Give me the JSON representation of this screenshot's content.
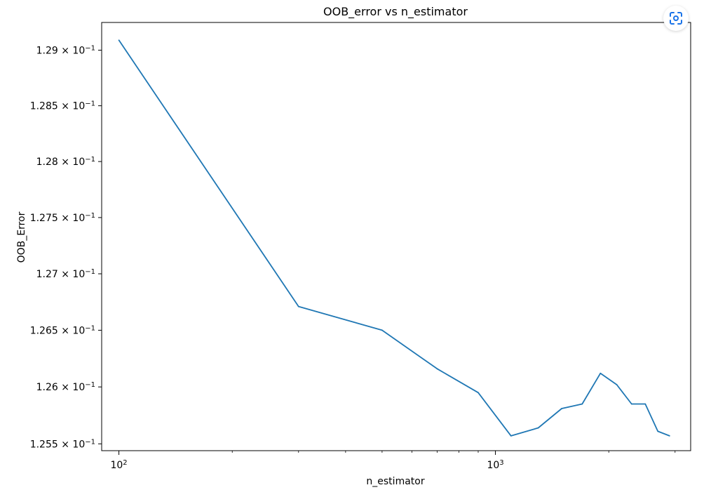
{
  "chart_data": {
    "type": "line",
    "title": "OOB_error vs n_estimator",
    "xlabel": "n_estimator",
    "ylabel": "OOB_Error",
    "xscale": "log",
    "yscale": "log",
    "xlim": [
      90,
      3300
    ],
    "ylim": [
      0.12544,
      0.12925
    ],
    "grid": false,
    "line_color": "#1f77b4",
    "x_ticks": [
      {
        "value": 100,
        "base": "10",
        "exp": "2"
      },
      {
        "value": 1000,
        "base": "10",
        "exp": "3"
      }
    ],
    "y_ticks": [
      {
        "value": 0.1255,
        "mant": "1.255",
        "base": "10",
        "exp": "−1"
      },
      {
        "value": 0.126,
        "mant": "1.26",
        "base": "10",
        "exp": "−1"
      },
      {
        "value": 0.1265,
        "mant": "1.265",
        "base": "10",
        "exp": "−1"
      },
      {
        "value": 0.127,
        "mant": "1.27",
        "base": "10",
        "exp": "−1"
      },
      {
        "value": 0.1275,
        "mant": "1.275",
        "base": "10",
        "exp": "−1"
      },
      {
        "value": 0.128,
        "mant": "1.28",
        "base": "10",
        "exp": "−1"
      },
      {
        "value": 0.1285,
        "mant": "1.285",
        "base": "10",
        "exp": "−1"
      },
      {
        "value": 0.129,
        "mant": "1.29",
        "base": "10",
        "exp": "−1"
      }
    ],
    "x": [
      100,
      300,
      500,
      700,
      900,
      1100,
      1300,
      1500,
      1700,
      1900,
      2100,
      2300,
      2500,
      2700,
      2900
    ],
    "y": [
      0.12909,
      0.12671,
      0.1265,
      0.12616,
      0.12595,
      0.12557,
      0.12564,
      0.12581,
      0.12585,
      0.12612,
      0.12602,
      0.12585,
      0.12585,
      0.12561,
      0.12557
    ]
  },
  "lens_icon": "google-lens-icon"
}
